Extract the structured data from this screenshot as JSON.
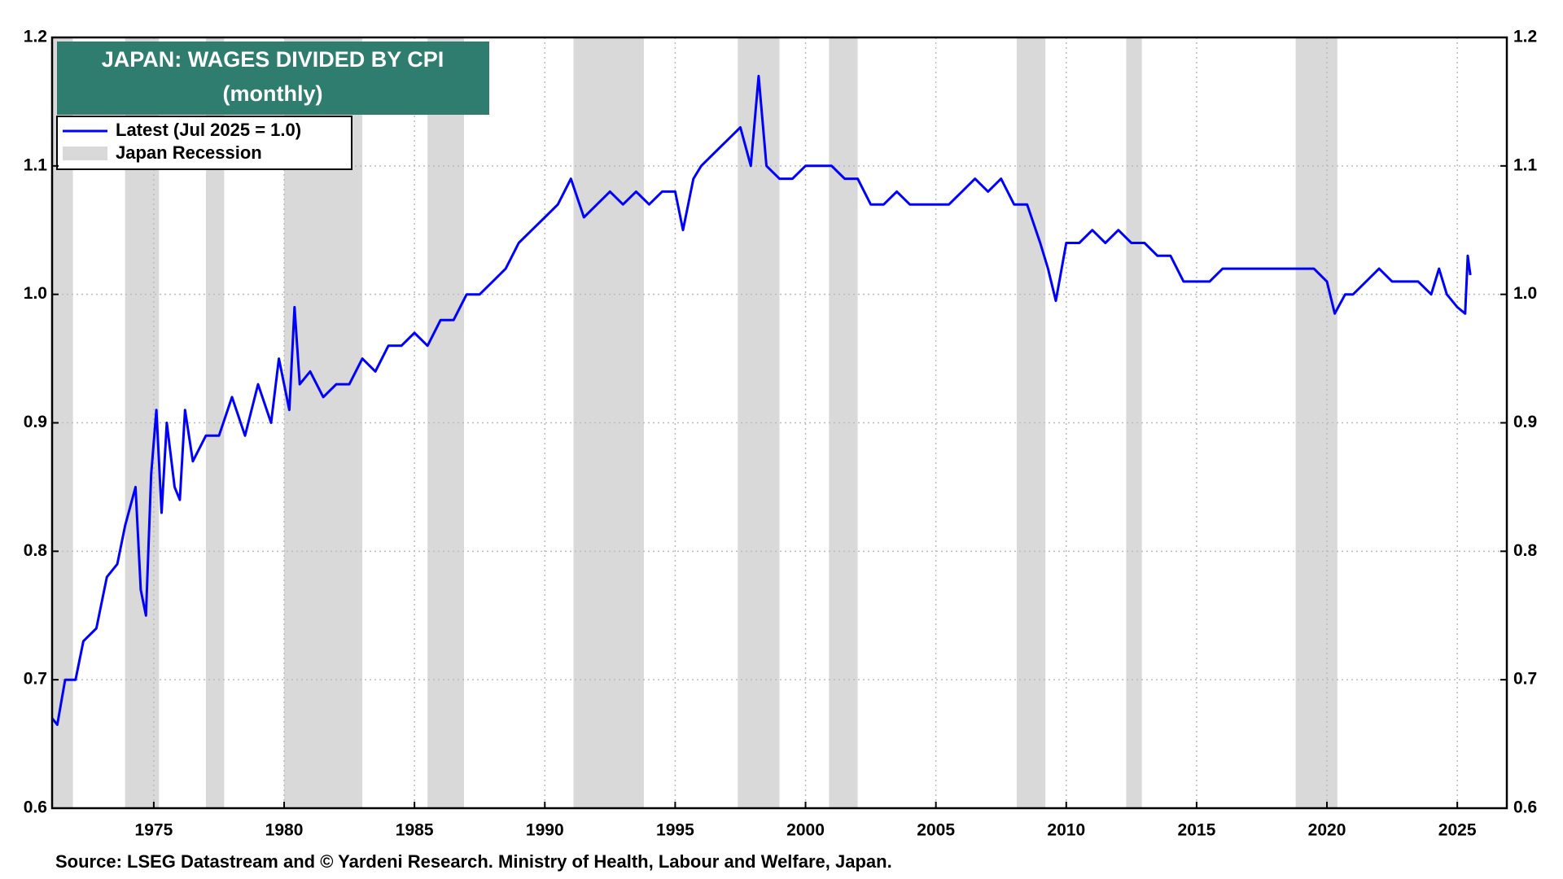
{
  "chart_data": {
    "type": "line",
    "title": "JAPAN: WAGES DIVIDED BY CPI",
    "subtitle": "(monthly)",
    "source": "Source: LSEG Datastream and © Yardeni Research. Ministry of Health, Labour and Welfare, Japan.",
    "xlim": [
      1971.1,
      2026.9
    ],
    "xticks": [
      1975,
      1980,
      1985,
      1990,
      1995,
      2000,
      2005,
      2010,
      2015,
      2020,
      2025
    ],
    "ylim": [
      0.6,
      1.2
    ],
    "yticks": [
      0.6,
      0.7,
      0.8,
      0.9,
      {
        "value": 1,
        "label": "1.0"
      },
      1.1,
      1.2
    ],
    "grid": true,
    "recession_name": "Japan Recession",
    "recession_color": "#d9d9d9",
    "recessions": [
      [
        1971.0,
        1971.9
      ],
      [
        1973.9,
        1975.2
      ],
      [
        1977.0,
        1977.7
      ],
      [
        1980.0,
        1983.0
      ],
      [
        1985.5,
        1986.9
      ],
      [
        1991.1,
        1993.8
      ],
      [
        1997.4,
        1999.0
      ],
      [
        2000.9,
        2002.0
      ],
      [
        2008.1,
        2009.2
      ],
      [
        2012.3,
        2012.9
      ],
      [
        2018.8,
        2020.4
      ]
    ],
    "series": [
      {
        "name": "Latest (Jul 2025 = 1.0)",
        "color": "#0000ff",
        "x": [
          1971.1,
          1971.3,
          1971.6,
          1972.0,
          1972.3,
          1972.8,
          1973.2,
          1973.6,
          1973.9,
          1974.3,
          1974.5,
          1974.7,
          1974.9,
          1975.1,
          1975.3,
          1975.5,
          1975.8,
          1976.0,
          1976.2,
          1976.5,
          1977.0,
          1977.5,
          1978.0,
          1978.5,
          1979.0,
          1979.5,
          1979.8,
          1980.2,
          1980.4,
          1980.6,
          1981.0,
          1981.5,
          1982.0,
          1982.5,
          1983.0,
          1983.5,
          1984.0,
          1984.5,
          1985.0,
          1985.5,
          1986.0,
          1986.5,
          1987.0,
          1987.5,
          1988.0,
          1988.5,
          1989.0,
          1989.5,
          1990.0,
          1990.5,
          1991.0,
          1991.5,
          1992.0,
          1992.5,
          1993.0,
          1993.5,
          1994.0,
          1994.5,
          1995.0,
          1995.3,
          1995.7,
          1996.0,
          1996.5,
          1997.0,
          1997.5,
          1997.9,
          1998.2,
          1998.5,
          1999.0,
          1999.5,
          2000.0,
          2000.5,
          2001.0,
          2001.5,
          2002.0,
          2002.5,
          2003.0,
          2003.5,
          2004.0,
          2004.5,
          2005.0,
          2005.5,
          2006.0,
          2006.5,
          2007.0,
          2007.5,
          2008.0,
          2008.5,
          2009.0,
          2009.3,
          2009.6,
          2010.0,
          2010.5,
          2011.0,
          2011.5,
          2012.0,
          2012.5,
          2013.0,
          2013.5,
          2014.0,
          2014.5,
          2015.0,
          2015.5,
          2016.0,
          2016.5,
          2017.0,
          2017.5,
          2018.0,
          2018.5,
          2019.0,
          2019.5,
          2020.0,
          2020.3,
          2020.7,
          2021.0,
          2021.5,
          2022.0,
          2022.5,
          2023.0,
          2023.5,
          2024.0,
          2024.3,
          2024.6,
          2025.0,
          2025.3,
          2025.4,
          2025.5
        ],
        "values": [
          0.67,
          0.665,
          0.7,
          0.7,
          0.73,
          0.74,
          0.78,
          0.79,
          0.82,
          0.85,
          0.77,
          0.75,
          0.86,
          0.91,
          0.83,
          0.9,
          0.85,
          0.84,
          0.91,
          0.87,
          0.89,
          0.89,
          0.92,
          0.89,
          0.93,
          0.9,
          0.95,
          0.91,
          0.99,
          0.93,
          0.94,
          0.92,
          0.93,
          0.93,
          0.95,
          0.94,
          0.96,
          0.96,
          0.97,
          0.96,
          0.98,
          0.98,
          1.0,
          1.0,
          1.01,
          1.02,
          1.04,
          1.05,
          1.06,
          1.07,
          1.09,
          1.06,
          1.07,
          1.08,
          1.07,
          1.08,
          1.07,
          1.08,
          1.08,
          1.05,
          1.09,
          1.1,
          1.11,
          1.12,
          1.13,
          1.1,
          1.17,
          1.1,
          1.09,
          1.09,
          1.1,
          1.1,
          1.1,
          1.09,
          1.09,
          1.07,
          1.07,
          1.08,
          1.07,
          1.07,
          1.07,
          1.07,
          1.08,
          1.09,
          1.08,
          1.09,
          1.07,
          1.07,
          1.04,
          1.02,
          0.995,
          1.04,
          1.04,
          1.05,
          1.04,
          1.05,
          1.04,
          1.04,
          1.03,
          1.03,
          1.01,
          1.01,
          1.01,
          1.02,
          1.02,
          1.02,
          1.02,
          1.02,
          1.02,
          1.02,
          1.02,
          1.01,
          0.985,
          1.0,
          1.0,
          1.01,
          1.02,
          1.01,
          1.01,
          1.01,
          1.0,
          1.02,
          1.0,
          0.99,
          0.985,
          1.03,
          1.015
        ]
      }
    ]
  }
}
